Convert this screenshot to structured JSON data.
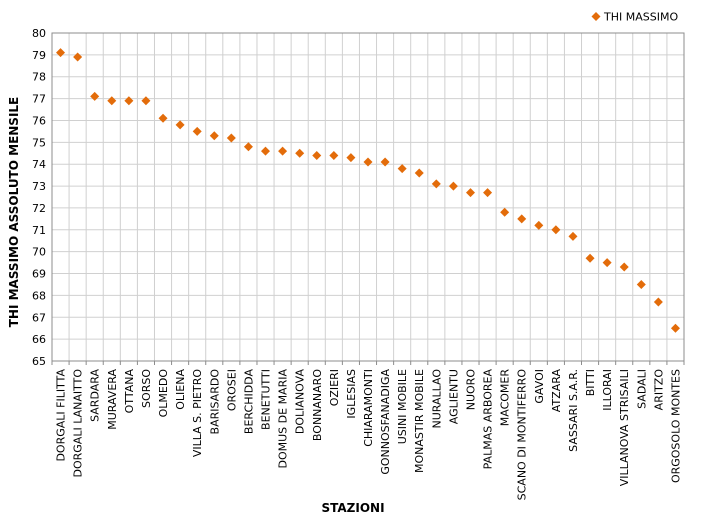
{
  "chart_data": {
    "type": "scatter",
    "xlabel": "STAZIONI",
    "ylabel": "THI MASSIMO ASSOLUTO MENSILE",
    "ylim": [
      65,
      80
    ],
    "ystep": 1,
    "grid": true,
    "legend_position": "top-right",
    "marker": "diamond",
    "marker_color": "#E36C0A",
    "categories": [
      "DORGALI FILITTA",
      "DORGALI LANAITTO",
      "SARDARA",
      "MURAVERA",
      "OTTANA",
      "SORSO",
      "OLMEDO",
      "OLIENA",
      "VILLA S. PIETRO",
      "BARISARDO",
      "OROSEI",
      "BERCHIDDA",
      "BENETUTTI",
      "DOMUS DE MARIA",
      "DOLIANOVA",
      "BONNANARO",
      "OZIERI",
      "IGLESIAS",
      "CHIARAMONTI",
      "GONNOSFANADIGA",
      "USINI MOBILE",
      "MONASTIR MOBILE",
      "NURALLAO",
      "AGLIENTU",
      "NUORO",
      "PALMAS ARBOREA",
      "MACOMER",
      "SCANO DI MONTIFERRO",
      "GAVOI",
      "ATZARA",
      "SASSARI S.A.R.",
      "BITTI",
      "ILLORAI",
      "VILLANOVA STRISAILI",
      "SADALI",
      "ARITZO",
      "ORGOSOLO MONTES"
    ],
    "series": [
      {
        "name": "THI MASSIMO",
        "values": [
          79.1,
          78.9,
          77.1,
          76.9,
          76.9,
          76.9,
          76.1,
          75.8,
          75.5,
          75.3,
          75.2,
          74.8,
          74.6,
          74.6,
          74.5,
          74.4,
          74.4,
          74.3,
          74.1,
          74.1,
          73.8,
          73.6,
          73.1,
          73.0,
          72.7,
          72.7,
          71.8,
          71.5,
          71.2,
          71.0,
          70.7,
          69.7,
          69.5,
          69.3,
          68.5,
          67.7,
          66.5
        ]
      }
    ]
  }
}
